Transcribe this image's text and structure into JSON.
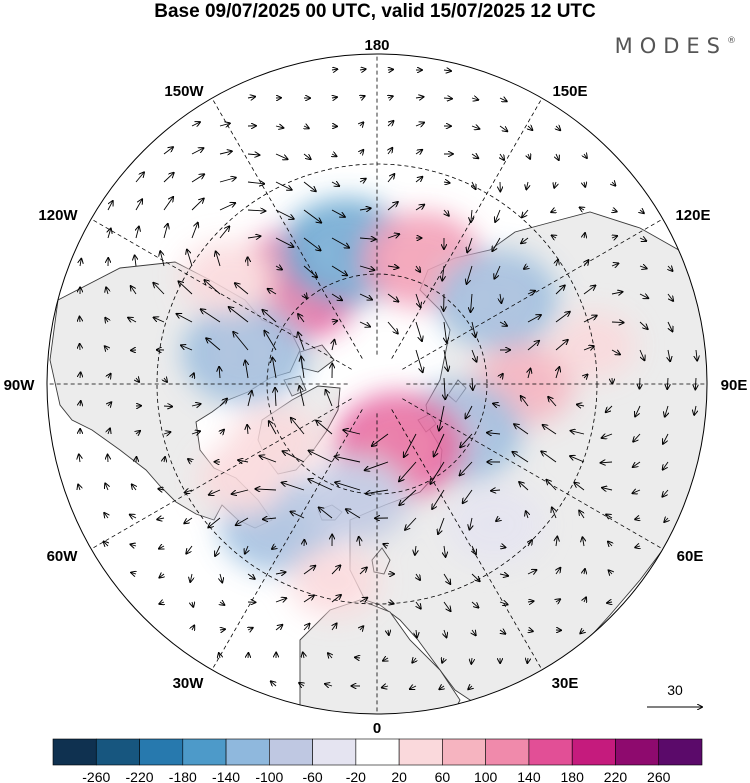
{
  "title": "Base 09/07/2025 00 UTC, valid 15/07/2025 12 UTC",
  "logo": "MODES",
  "logo_mark": "®",
  "longitude_labels": [
    "180",
    "150E",
    "120E",
    "90E",
    "60E",
    "30E",
    "0",
    "30W",
    "60W",
    "90W",
    "120W",
    "150W"
  ],
  "reference_vector": {
    "label": "30",
    "magnitude": 30
  },
  "colorbar": {
    "ticks": [
      "-260",
      "-220",
      "-180",
      "-140",
      "-100",
      "-60",
      "-20",
      "20",
      "60",
      "100",
      "140",
      "180",
      "220",
      "260"
    ],
    "colors": [
      "#0f3150",
      "#17567f",
      "#2779ae",
      "#4d9ac9",
      "#8fb8dd",
      "#bfc8e2",
      "#e5e4f1",
      "#ffffff",
      "#fad9dc",
      "#f6b4c0",
      "#f08aab",
      "#e24f96",
      "#c51b7d",
      "#8e0a6e",
      "#5b0a6a"
    ]
  },
  "anomalies": [
    {
      "lon": -140,
      "lat": 55,
      "value": 160
    },
    {
      "lon": -167,
      "lat": 53,
      "value": -150
    },
    {
      "lon": 160,
      "lat": 54,
      "value": 110
    },
    {
      "lon": 125,
      "lat": 50,
      "value": -120
    },
    {
      "lon": -103,
      "lat": 53,
      "value": -130
    },
    {
      "lon": 90,
      "lat": 50,
      "value": 70
    },
    {
      "lon": 60,
      "lat": 64,
      "value": -130
    },
    {
      "lon": 20,
      "lat": 72,
      "value": 150
    },
    {
      "lon": -35,
      "lat": 43,
      "value": -110
    },
    {
      "lon": -10,
      "lat": 58,
      "value": -80
    },
    {
      "lon": -60,
      "lat": 58,
      "value": 50
    },
    {
      "lon": 40,
      "lat": 40,
      "value": -60
    },
    {
      "lon": -12,
      "lat": 35,
      "value": 40
    },
    {
      "lon": -55,
      "lat": 45,
      "value": 35
    },
    {
      "lon": -125,
      "lat": 40,
      "value": 45
    },
    {
      "lon": 100,
      "lat": 30,
      "value": 25
    }
  ]
}
